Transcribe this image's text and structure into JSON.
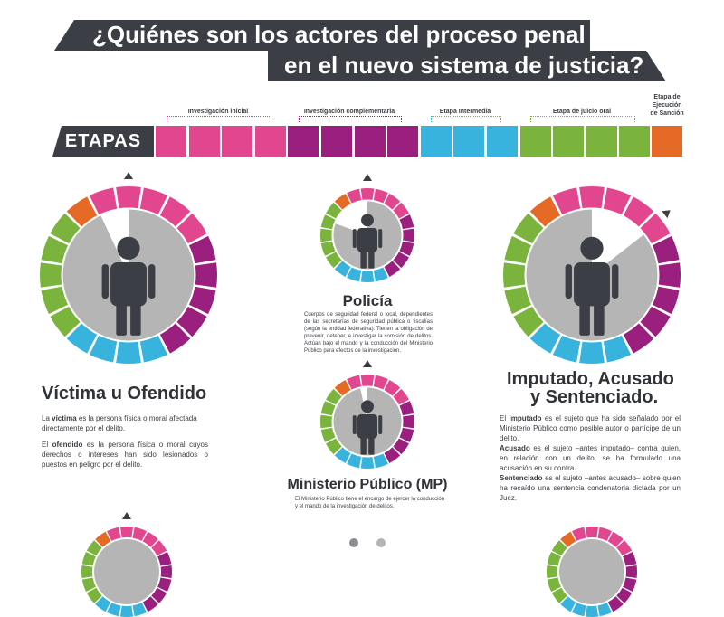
{
  "title": {
    "line1": "¿Quiénes son los actores del proceso penal",
    "line2": "en el nuevo sistema de justicia?"
  },
  "etapas": {
    "label": "ETAPAS",
    "stages": [
      {
        "name": "Investigación inicial",
        "color": "#e2468f"
      },
      {
        "name": "Investigación complementaria",
        "color": "#9a1f7e"
      },
      {
        "name": "Etapa Intermedia",
        "color": "#38b3de"
      },
      {
        "name": "Etapa de juicio oral",
        "color": "#7ab43c"
      },
      {
        "name_line1": "Etapa de",
        "name_line2": "Ejecución",
        "name_line3": "de Sanción",
        "color": "#e56a26"
      }
    ]
  },
  "colors": {
    "pink": "#e2468f",
    "purple": "#9a1f7e",
    "blue": "#38b3de",
    "green": "#7ab43c",
    "orange": "#e56a26",
    "dark": "#3b3e44",
    "gray": "#b5b5b6"
  },
  "icons": {
    "person": "person-silhouette-icon",
    "marker": "triangle-marker-icon"
  },
  "actors": {
    "victima": {
      "title": "Víctima u Ofendido",
      "p1_bold": "víctima",
      "p1_pre": "La ",
      "p1_post": " es la persona física o moral afectada directamente por el delito.",
      "p2_pre": "El ",
      "p2_bold": "ofendido",
      "p2_post": " es la persona física o moral cuyos derechos o intereses han sido  lesionados o puestos en peligro por el delito."
    },
    "policia": {
      "title": "Policía",
      "desc": "Cuerpos de seguridad federal o local, dependientes de las secretarías de seguridad pública o fiscalías (según la entidad federativa). Tienen la obligación de prevenir, detener, e investigar la comisión de delitos. Actúan bajo el mando y la conducción del Ministerio Público para efectos de la investigación."
    },
    "mp": {
      "title": "Ministerio Público (MP)",
      "desc": "El Ministerio Público tiene el encargo de ejercer la conducción y el mando de la investigación de delitos."
    },
    "imputado": {
      "title_line1": "Imputado, Acusado",
      "title_line2": "y Sentenciado.",
      "p1_pre": "El ",
      "p1_bold": "imputado",
      "p1_post": " es el sujeto que ha sido señalado por el Ministerio Público como posible autor o partícipe de un delito.",
      "p2_bold": "Acusado",
      "p2_post": " es el sujeto –antes imputado– contra quien, en relación con un delito, se ha formulado una acusación en su contra.",
      "p3_bold": "Sentenciado",
      "p3_post": " es el sujeto –antes acusado– sobre quien ha recaído una sentencia condenatoria dictada por un Juez."
    }
  }
}
